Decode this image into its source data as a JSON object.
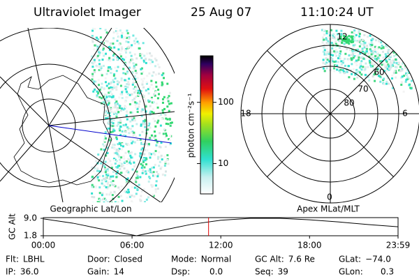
{
  "header": {
    "instrument": "Ultraviolet Imager",
    "date": "25 Aug 07",
    "time": "11:10:24 UT"
  },
  "left_panel": {
    "label": "Geographic Lat/Lon"
  },
  "right_panel": {
    "label": "Apex MLat/MLT",
    "mlt_labels": [
      "12",
      "18",
      "6",
      "0"
    ],
    "mlat_labels": [
      "60",
      "70",
      "80"
    ]
  },
  "colorbar": {
    "label": "photon cm⁻²s⁻¹",
    "scale": "log",
    "lim": [
      3.2,
      575
    ],
    "ticks": [
      10,
      100
    ]
  },
  "altitude_plot": {
    "ylabel": "GC Alt",
    "x": [
      0,
      2,
      4,
      6.3,
      8,
      10,
      12,
      14,
      16,
      18,
      20,
      22,
      23.983
    ],
    "values": [
      8.8,
      7.0,
      4.5,
      1.8,
      4.0,
      6.5,
      8.2,
      9.0,
      9.0,
      8.4,
      7.5,
      6.4,
      5.5
    ],
    "xlim": [
      0,
      23.983
    ],
    "ylim": [
      1.8,
      9.0
    ],
    "xticks": [
      {
        "value": 0,
        "label": "00:00"
      },
      {
        "value": 6,
        "label": "06:00"
      },
      {
        "value": 12,
        "label": "12:00"
      },
      {
        "value": 18,
        "label": "18:00"
      },
      {
        "value": 23.983,
        "label": "23:59"
      }
    ],
    "yticks": [
      {
        "value": 9.0,
        "label": "9.0"
      },
      {
        "value": 1.8,
        "label": "1.8"
      }
    ],
    "marker_x": 11.173,
    "color": "#000000",
    "marker_color": "#e00000"
  },
  "footer": {
    "rows": [
      [
        {
          "label": "Flt:",
          "value": "LBHL"
        },
        {
          "label": "Door:",
          "value": "Closed"
        },
        {
          "label": "Mode:",
          "value": "Normal"
        },
        {
          "label": "GC Alt:",
          "value": "7.6 Re"
        },
        {
          "label": "GLat:",
          "value": "−74.0"
        }
      ],
      [
        {
          "label": "IP:",
          "value": "36.0"
        },
        {
          "label": "Gain:",
          "value": "14"
        },
        {
          "label": "Dsp:",
          "value": "0.0"
        },
        {
          "label": "Seq:",
          "value": "39"
        },
        {
          "label": "GLon:",
          "value": "0.3"
        }
      ]
    ]
  }
}
